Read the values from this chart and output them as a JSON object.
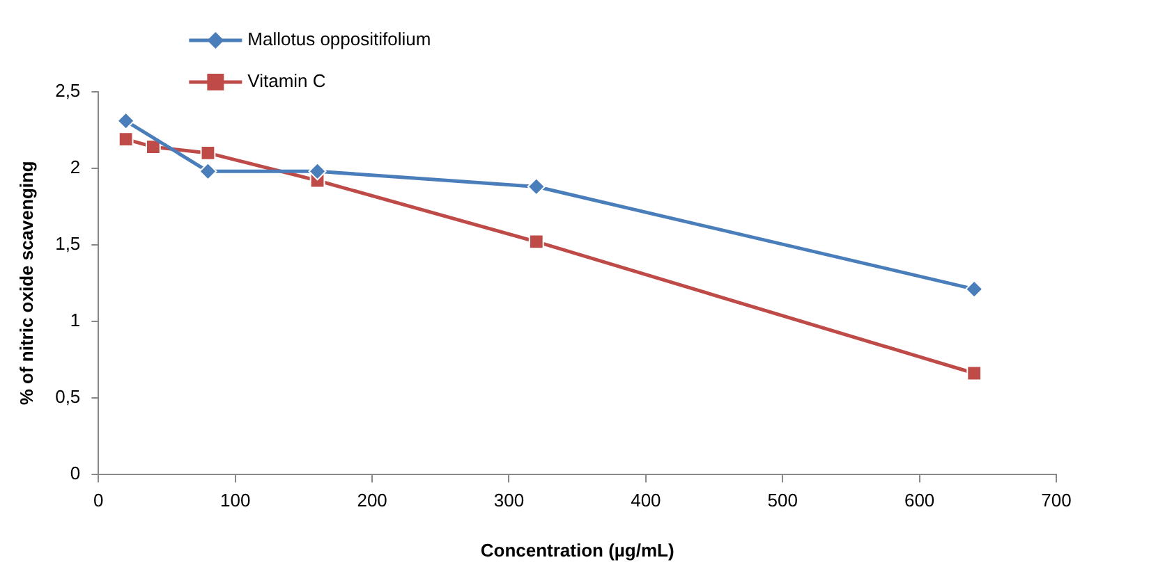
{
  "chart_data": {
    "type": "line",
    "xlabel": "Concentration (µg/mL)",
    "ylabel": "% of nitric oxide scavenging",
    "series": [
      {
        "name": "Mallotus oppositifolium",
        "color": "#4a7ebb",
        "marker": "diamond",
        "x": [
          20,
          80,
          160,
          320,
          640
        ],
        "values": [
          2.31,
          1.98,
          1.98,
          1.88,
          1.21
        ]
      },
      {
        "name": "Vitamin C",
        "color": "#be4b48",
        "marker": "square",
        "x": [
          20,
          40,
          80,
          160,
          320,
          640
        ],
        "values": [
          2.19,
          2.14,
          2.1,
          1.92,
          1.52,
          0.66
        ]
      }
    ],
    "xlim": [
      0,
      700
    ],
    "xticks": [
      0,
      100,
      200,
      300,
      400,
      500,
      600,
      700
    ],
    "ylim": [
      0,
      2.5
    ],
    "yticks": [
      {
        "value": 0,
        "label": "0"
      },
      {
        "value": 0.5,
        "label": "0,5"
      },
      {
        "value": 1,
        "label": "1"
      },
      {
        "value": 1.5,
        "label": "1,5"
      },
      {
        "value": 2,
        "label": "2"
      },
      {
        "value": 2.5,
        "label": "2,5"
      }
    ],
    "grid": false,
    "legend": "top left"
  }
}
